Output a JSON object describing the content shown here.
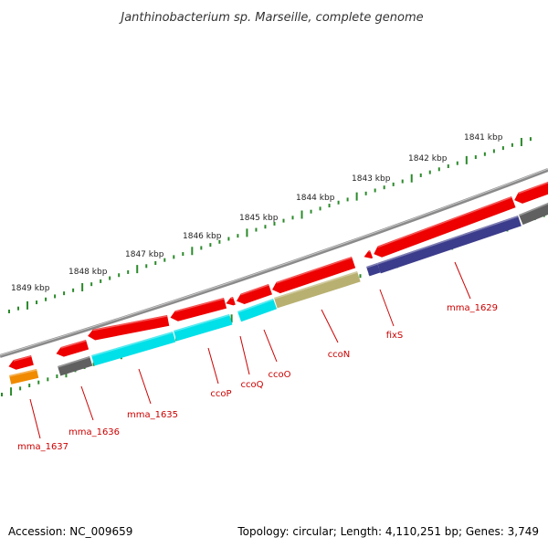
{
  "title": "Janthinobacterium sp. Marseille, complete genome",
  "footer": {
    "accession": "Accession: NC_009659",
    "summary": "Topology: circular; Length: 4,110,251 bp; Genes: 3,749"
  },
  "colors": {
    "backbone": "#8a8a8a",
    "cds": "#ee0000",
    "tick": "#2a8a2a",
    "label": "#cc0000",
    "cyan": "#00e0e8",
    "grey": "#606060",
    "olive": "#b8b070",
    "navy": "#3c3c8c",
    "orange": "#f08a00"
  },
  "axis": {
    "unit": "kbp",
    "labels": [
      "1849 kbp",
      "1848 kbp",
      "1847 kbp",
      "1846 kbp",
      "1845 kbp",
      "1844 kbp",
      "1843 kbp",
      "1842 kbp",
      "1841 kbp"
    ]
  },
  "genes": [
    {
      "id": "g-mma1637",
      "label": "mma_1637",
      "cog": "orange"
    },
    {
      "id": "g-mma1636",
      "label": "mma_1636",
      "cog": "grey"
    },
    {
      "id": "g-mma1635",
      "label": "mma_1635",
      "cog": "cyan"
    },
    {
      "id": "g-ccoP",
      "label": "ccoP",
      "cog": "cyan"
    },
    {
      "id": "g-ccoQ",
      "label": "ccoQ",
      "cog": "none"
    },
    {
      "id": "g-ccoO",
      "label": "ccoO",
      "cog": "cyan"
    },
    {
      "id": "g-ccoN",
      "label": "ccoN",
      "cog": "olive"
    },
    {
      "id": "g-fixS",
      "label": "fixS",
      "cog": "navy"
    },
    {
      "id": "g-mma1629",
      "label": "mma_1629",
      "cog": "navy"
    },
    {
      "id": "g-right",
      "label": "",
      "cog": "grey"
    }
  ]
}
